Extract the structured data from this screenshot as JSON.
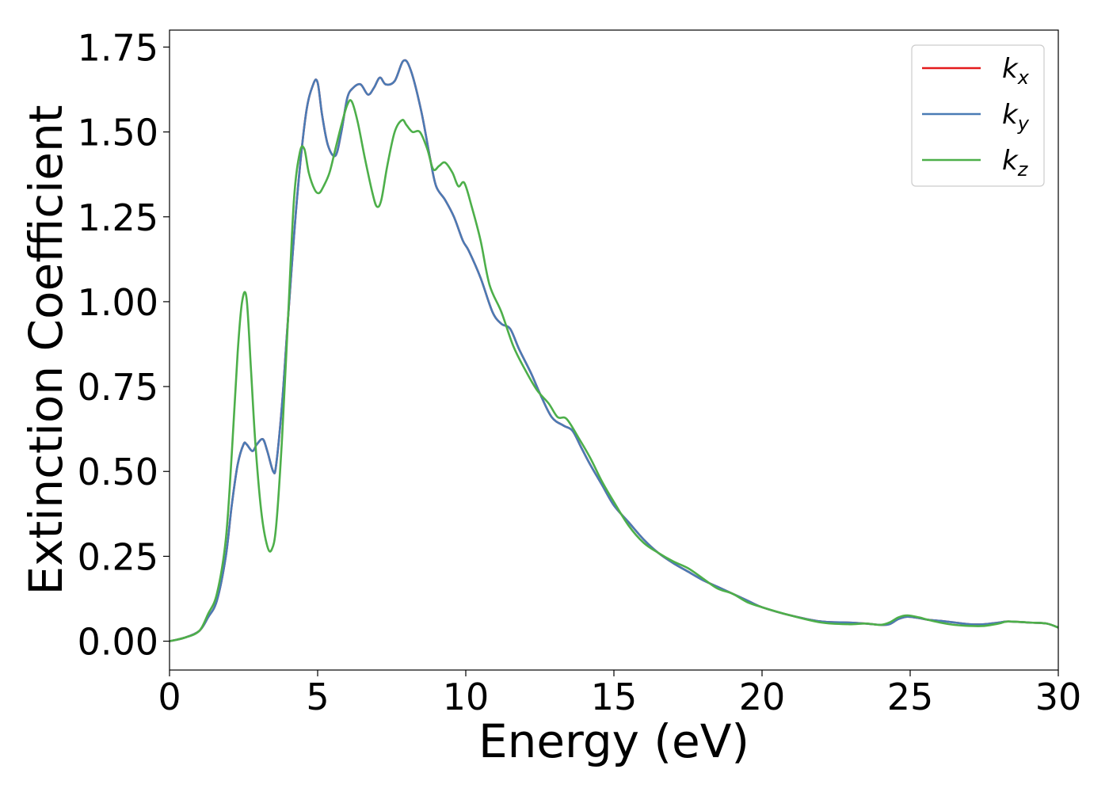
{
  "chart_data": {
    "type": "line",
    "title": "",
    "xlabel": "Energy (eV)",
    "ylabel": "Extinction Coefficient",
    "xlim": [
      0,
      30
    ],
    "ylim": [
      -0.085,
      1.8
    ],
    "xticks": [
      0,
      5,
      10,
      15,
      20,
      25,
      30
    ],
    "xtick_labels": [
      "0",
      "5",
      "10",
      "15",
      "20",
      "25",
      "30"
    ],
    "yticks": [
      0,
      0.25,
      0.5,
      0.75,
      1.0,
      1.25,
      1.5,
      1.75
    ],
    "ytick_labels": [
      "0.00",
      "0.25",
      "0.50",
      "0.75",
      "1.00",
      "1.25",
      "1.50",
      "1.75"
    ],
    "grid": false,
    "legend_position": "top-right",
    "series": [
      {
        "name": "k_x",
        "label_base": "k",
        "label_sub": "x",
        "color": "#e41a1c",
        "x": [
          0,
          0.5,
          1.0,
          1.3,
          1.6,
          1.9,
          2.1,
          2.3,
          2.5,
          2.6,
          2.8,
          2.95,
          3.15,
          3.3,
          3.5,
          3.6,
          3.8,
          4.0,
          4.3,
          4.6,
          4.85,
          5.0,
          5.15,
          5.35,
          5.6,
          5.8,
          6.0,
          6.2,
          6.45,
          6.7,
          6.9,
          7.1,
          7.3,
          7.6,
          7.9,
          8.15,
          8.5,
          8.8,
          9.0,
          9.3,
          9.6,
          9.9,
          10.1,
          10.5,
          10.9,
          11.2,
          11.5,
          11.8,
          12.2,
          12.5,
          12.9,
          13.3,
          13.6,
          13.9,
          14.2,
          14.6,
          15.0,
          15.5,
          16.0,
          16.5,
          17.0,
          17.5,
          18.0,
          18.5,
          19.0,
          19.5,
          20.0,
          21.0,
          22.0,
          22.9,
          23.5,
          24.0,
          24.3,
          24.6,
          24.9,
          25.3,
          25.6,
          26.0,
          26.5,
          27.0,
          27.5,
          28.0,
          28.3,
          29.0,
          29.6,
          30.0
        ],
        "y": [
          0,
          0.01,
          0.03,
          0.07,
          0.12,
          0.25,
          0.4,
          0.52,
          0.58,
          0.58,
          0.56,
          0.58,
          0.595,
          0.56,
          0.5,
          0.52,
          0.7,
          0.95,
          1.3,
          1.55,
          1.64,
          1.645,
          1.55,
          1.46,
          1.43,
          1.5,
          1.6,
          1.63,
          1.64,
          1.61,
          1.63,
          1.66,
          1.64,
          1.65,
          1.71,
          1.68,
          1.56,
          1.42,
          1.34,
          1.3,
          1.25,
          1.18,
          1.15,
          1.07,
          0.97,
          0.935,
          0.92,
          0.86,
          0.79,
          0.73,
          0.66,
          0.635,
          0.62,
          0.57,
          0.52,
          0.46,
          0.4,
          0.35,
          0.3,
          0.26,
          0.23,
          0.205,
          0.18,
          0.16,
          0.14,
          0.12,
          0.1,
          0.075,
          0.058,
          0.055,
          0.052,
          0.048,
          0.05,
          0.065,
          0.072,
          0.068,
          0.063,
          0.06,
          0.055,
          0.05,
          0.05,
          0.055,
          0.058,
          0.055,
          0.052,
          0.04
        ]
      },
      {
        "name": "k_y",
        "label_base": "k",
        "label_sub": "y",
        "color": "#4a7bb5",
        "x": [
          0,
          0.5,
          1.0,
          1.3,
          1.6,
          1.9,
          2.1,
          2.3,
          2.5,
          2.6,
          2.8,
          2.95,
          3.15,
          3.3,
          3.5,
          3.6,
          3.8,
          4.0,
          4.3,
          4.6,
          4.85,
          5.0,
          5.15,
          5.35,
          5.6,
          5.8,
          6.0,
          6.2,
          6.45,
          6.7,
          6.9,
          7.1,
          7.3,
          7.6,
          7.9,
          8.15,
          8.5,
          8.8,
          9.0,
          9.3,
          9.6,
          9.9,
          10.1,
          10.5,
          10.9,
          11.2,
          11.5,
          11.8,
          12.2,
          12.5,
          12.9,
          13.3,
          13.6,
          13.9,
          14.2,
          14.6,
          15.0,
          15.5,
          16.0,
          16.5,
          17.0,
          17.5,
          18.0,
          18.5,
          19.0,
          19.5,
          20.0,
          21.0,
          22.0,
          22.9,
          23.5,
          24.0,
          24.3,
          24.6,
          24.9,
          25.3,
          25.6,
          26.0,
          26.5,
          27.0,
          27.5,
          28.0,
          28.3,
          29.0,
          29.6,
          30.0
        ],
        "y": [
          0,
          0.01,
          0.03,
          0.07,
          0.12,
          0.25,
          0.4,
          0.52,
          0.58,
          0.58,
          0.56,
          0.58,
          0.595,
          0.56,
          0.5,
          0.52,
          0.7,
          0.95,
          1.3,
          1.55,
          1.64,
          1.645,
          1.55,
          1.46,
          1.43,
          1.5,
          1.6,
          1.63,
          1.64,
          1.61,
          1.63,
          1.66,
          1.64,
          1.65,
          1.71,
          1.68,
          1.56,
          1.42,
          1.34,
          1.3,
          1.25,
          1.18,
          1.15,
          1.07,
          0.97,
          0.935,
          0.92,
          0.86,
          0.79,
          0.73,
          0.66,
          0.635,
          0.62,
          0.57,
          0.52,
          0.46,
          0.4,
          0.35,
          0.3,
          0.26,
          0.23,
          0.205,
          0.18,
          0.16,
          0.14,
          0.12,
          0.1,
          0.075,
          0.058,
          0.055,
          0.052,
          0.048,
          0.05,
          0.065,
          0.072,
          0.068,
          0.063,
          0.06,
          0.055,
          0.05,
          0.05,
          0.055,
          0.058,
          0.055,
          0.052,
          0.04
        ]
      },
      {
        "name": "k_z",
        "label_base": "k",
        "label_sub": "z",
        "color": "#4daf4a",
        "x": [
          0,
          0.5,
          1.0,
          1.3,
          1.6,
          1.9,
          2.1,
          2.3,
          2.45,
          2.6,
          2.75,
          2.9,
          3.1,
          3.3,
          3.45,
          3.6,
          3.8,
          4.0,
          4.2,
          4.4,
          4.55,
          4.7,
          4.9,
          5.05,
          5.2,
          5.4,
          5.6,
          5.8,
          6.0,
          6.15,
          6.35,
          6.6,
          6.85,
          7.0,
          7.15,
          7.35,
          7.6,
          7.85,
          8.0,
          8.2,
          8.45,
          8.7,
          8.9,
          9.1,
          9.3,
          9.55,
          9.75,
          9.95,
          10.2,
          10.5,
          10.8,
          11.2,
          11.6,
          12.0,
          12.4,
          12.8,
          13.1,
          13.4,
          13.8,
          14.2,
          14.6,
          15.0,
          15.5,
          16.0,
          16.5,
          17.0,
          17.5,
          18.0,
          18.5,
          19.0,
          19.5,
          20.0,
          21.0,
          22.0,
          22.9,
          23.5,
          24.0,
          24.3,
          24.6,
          24.9,
          25.3,
          25.6,
          26.0,
          26.5,
          27.0,
          27.5,
          28.0,
          28.3,
          29.0,
          29.6,
          30.0
        ],
        "y": [
          0,
          0.01,
          0.03,
          0.08,
          0.14,
          0.3,
          0.55,
          0.85,
          1.0,
          1.01,
          0.8,
          0.58,
          0.38,
          0.28,
          0.27,
          0.34,
          0.6,
          0.95,
          1.3,
          1.44,
          1.45,
          1.38,
          1.33,
          1.32,
          1.34,
          1.38,
          1.45,
          1.52,
          1.58,
          1.59,
          1.53,
          1.42,
          1.32,
          1.28,
          1.3,
          1.4,
          1.5,
          1.535,
          1.52,
          1.5,
          1.5,
          1.45,
          1.39,
          1.4,
          1.41,
          1.38,
          1.34,
          1.35,
          1.28,
          1.18,
          1.05,
          0.97,
          0.87,
          0.8,
          0.74,
          0.7,
          0.66,
          0.655,
          0.6,
          0.54,
          0.47,
          0.41,
          0.34,
          0.29,
          0.26,
          0.235,
          0.215,
          0.185,
          0.155,
          0.14,
          0.115,
          0.1,
          0.075,
          0.055,
          0.05,
          0.052,
          0.048,
          0.055,
          0.07,
          0.076,
          0.07,
          0.063,
          0.055,
          0.048,
          0.045,
          0.045,
          0.052,
          0.058,
          0.055,
          0.052,
          0.04
        ]
      }
    ]
  }
}
